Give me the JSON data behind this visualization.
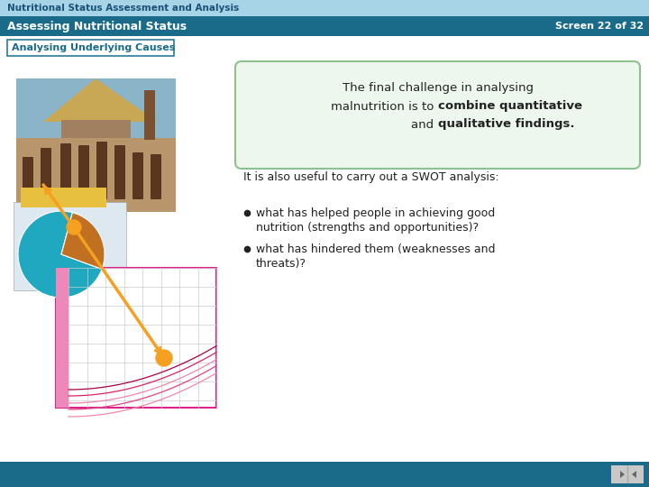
{
  "title_bar_color": "#a8d4e8",
  "title_text": "Nutritional Status Assessment and Analysis",
  "title_text_color": "#1a5276",
  "subtitle_bar_color": "#1a6b8a",
  "subtitle_text": "Assessing Nutritional Status",
  "subtitle_text_color": "#ffffff",
  "screen_text": "Screen 22 of 32",
  "screen_text_color": "#ffffff",
  "section_box_border": "#2a7a9a",
  "section_text": "Analysing Underlying Causes",
  "section_text_color": "#1a6b8a",
  "bg_color": "#ffffff",
  "callout_bg": "#eef7ee",
  "callout_border": "#90c090",
  "footer_bar_color": "#1a6b8a",
  "arrow_color": "#f5a020",
  "text_color": "#222222",
  "font_family": "DejaVu Sans"
}
